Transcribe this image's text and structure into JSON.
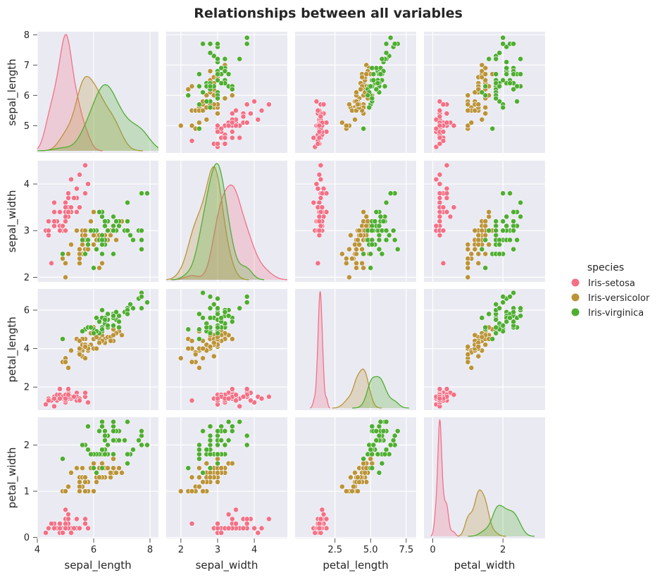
{
  "chart_data": {
    "type": "scatter",
    "title": "Relationships between all variables",
    "variables": [
      "sepal_length",
      "sepal_width",
      "petal_length",
      "petal_width"
    ],
    "axes": {
      "sepal_length": {
        "label": "sepal_length",
        "range": [
          4.0,
          8.3
        ],
        "ticks": [
          4,
          6,
          8
        ],
        "tick_labels": [
          "4",
          "6",
          "8"
        ],
        "y_range": [
          4.1,
          8.1
        ],
        "y_ticks": [
          5,
          6,
          7,
          8
        ],
        "y_tick_labels": [
          "5",
          "6",
          "7",
          "8"
        ]
      },
      "sepal_width": {
        "label": "sepal_width",
        "range": [
          1.6,
          4.9
        ],
        "ticks": [
          2,
          3,
          4
        ],
        "tick_labels": [
          "2",
          "3",
          "4"
        ],
        "y_range": [
          1.9,
          4.5
        ],
        "y_ticks": [
          2,
          3,
          4
        ],
        "y_tick_labels": [
          "2",
          "3",
          "4"
        ]
      },
      "petal_length": {
        "label": "petal_length",
        "range": [
          -0.3,
          8.2
        ],
        "ticks": [
          2.5,
          5.0,
          7.5
        ],
        "tick_labels": [
          "2.5",
          "5.0",
          "7.5"
        ],
        "y_range": [
          0.8,
          7.1
        ],
        "y_ticks": [
          2,
          4,
          6
        ],
        "y_tick_labels": [
          "2",
          "4",
          "6"
        ]
      },
      "petal_width": {
        "label": "petal_width",
        "range": [
          -0.25,
          3.2
        ],
        "ticks": [
          0,
          2
        ],
        "tick_labels": [
          "0",
          "2"
        ],
        "y_range": [
          -0.02,
          2.6
        ],
        "y_ticks": [
          0,
          1,
          2
        ],
        "y_tick_labels": [
          "0",
          "1",
          "2"
        ]
      }
    },
    "diagonal": "kde",
    "off_diagonal": "scatter",
    "grid": true,
    "legend": {
      "title": "species",
      "placement": "right",
      "entries": [
        {
          "name": "Iris-setosa",
          "color": "#f37086"
        },
        {
          "name": "Iris-versicolor",
          "color": "#bb9439"
        },
        {
          "name": "Iris-virginica",
          "color": "#4fae31"
        }
      ]
    },
    "series": [
      {
        "name": "Iris-setosa",
        "color": "#f37086",
        "points": [
          [
            5.1,
            3.5,
            1.4,
            0.2
          ],
          [
            4.9,
            3.0,
            1.4,
            0.2
          ],
          [
            4.7,
            3.2,
            1.3,
            0.2
          ],
          [
            4.6,
            3.1,
            1.5,
            0.2
          ],
          [
            5.0,
            3.6,
            1.4,
            0.2
          ],
          [
            5.4,
            3.9,
            1.7,
            0.4
          ],
          [
            4.6,
            3.4,
            1.4,
            0.3
          ],
          [
            5.0,
            3.4,
            1.5,
            0.2
          ],
          [
            4.4,
            2.9,
            1.4,
            0.2
          ],
          [
            4.9,
            3.1,
            1.5,
            0.1
          ],
          [
            5.4,
            3.7,
            1.5,
            0.2
          ],
          [
            4.8,
            3.4,
            1.6,
            0.2
          ],
          [
            4.8,
            3.0,
            1.4,
            0.1
          ],
          [
            4.3,
            3.0,
            1.1,
            0.1
          ],
          [
            5.8,
            4.0,
            1.2,
            0.2
          ],
          [
            5.7,
            4.4,
            1.5,
            0.4
          ],
          [
            5.4,
            3.9,
            1.3,
            0.4
          ],
          [
            5.1,
            3.5,
            1.4,
            0.3
          ],
          [
            5.7,
            3.8,
            1.7,
            0.3
          ],
          [
            5.1,
            3.8,
            1.5,
            0.3
          ],
          [
            5.4,
            3.4,
            1.7,
            0.2
          ],
          [
            5.1,
            3.7,
            1.5,
            0.4
          ],
          [
            4.6,
            3.6,
            1.0,
            0.2
          ],
          [
            5.1,
            3.3,
            1.7,
            0.5
          ],
          [
            4.8,
            3.4,
            1.9,
            0.2
          ],
          [
            5.0,
            3.0,
            1.6,
            0.2
          ],
          [
            5.0,
            3.4,
            1.6,
            0.4
          ],
          [
            5.2,
            3.5,
            1.5,
            0.2
          ],
          [
            5.2,
            3.4,
            1.4,
            0.2
          ],
          [
            4.7,
            3.2,
            1.6,
            0.2
          ],
          [
            4.8,
            3.1,
            1.6,
            0.2
          ],
          [
            5.4,
            3.4,
            1.5,
            0.4
          ],
          [
            5.2,
            4.1,
            1.5,
            0.1
          ],
          [
            5.5,
            4.2,
            1.4,
            0.2
          ],
          [
            4.9,
            3.1,
            1.5,
            0.1
          ],
          [
            5.0,
            3.2,
            1.2,
            0.2
          ],
          [
            5.5,
            3.5,
            1.3,
            0.2
          ],
          [
            4.9,
            3.1,
            1.5,
            0.1
          ],
          [
            4.4,
            3.0,
            1.3,
            0.2
          ],
          [
            5.1,
            3.4,
            1.5,
            0.2
          ],
          [
            5.0,
            3.5,
            1.3,
            0.3
          ],
          [
            4.5,
            2.3,
            1.3,
            0.3
          ],
          [
            4.4,
            3.2,
            1.3,
            0.2
          ],
          [
            5.0,
            3.5,
            1.6,
            0.6
          ],
          [
            5.1,
            3.8,
            1.9,
            0.4
          ],
          [
            4.8,
            3.0,
            1.4,
            0.3
          ],
          [
            5.1,
            3.8,
            1.6,
            0.2
          ],
          [
            4.6,
            3.2,
            1.4,
            0.2
          ],
          [
            5.3,
            3.7,
            1.5,
            0.2
          ],
          [
            5.0,
            3.3,
            1.4,
            0.2
          ]
        ]
      },
      {
        "name": "Iris-versicolor",
        "color": "#bb9439",
        "points": [
          [
            7.0,
            3.2,
            4.7,
            1.4
          ],
          [
            6.4,
            3.2,
            4.5,
            1.5
          ],
          [
            6.9,
            3.1,
            4.9,
            1.5
          ],
          [
            5.5,
            2.3,
            4.0,
            1.3
          ],
          [
            6.5,
            2.8,
            4.6,
            1.5
          ],
          [
            5.7,
            2.8,
            4.5,
            1.3
          ],
          [
            6.3,
            3.3,
            4.7,
            1.6
          ],
          [
            4.9,
            2.4,
            3.3,
            1.0
          ],
          [
            6.6,
            2.9,
            4.6,
            1.3
          ],
          [
            5.2,
            2.7,
            3.9,
            1.4
          ],
          [
            5.0,
            2.0,
            3.5,
            1.0
          ],
          [
            5.9,
            3.0,
            4.2,
            1.5
          ],
          [
            6.0,
            2.2,
            4.0,
            1.0
          ],
          [
            6.1,
            2.9,
            4.7,
            1.4
          ],
          [
            5.6,
            2.9,
            3.6,
            1.3
          ],
          [
            6.7,
            3.1,
            4.4,
            1.4
          ],
          [
            5.6,
            3.0,
            4.5,
            1.5
          ],
          [
            5.8,
            2.7,
            4.1,
            1.0
          ],
          [
            6.2,
            2.2,
            4.5,
            1.5
          ],
          [
            5.6,
            2.5,
            3.9,
            1.1
          ],
          [
            5.9,
            3.2,
            4.8,
            1.8
          ],
          [
            6.1,
            2.8,
            4.0,
            1.3
          ],
          [
            6.3,
            2.5,
            4.9,
            1.5
          ],
          [
            6.1,
            2.8,
            4.7,
            1.2
          ],
          [
            6.4,
            2.9,
            4.3,
            1.3
          ],
          [
            6.6,
            3.0,
            4.4,
            1.4
          ],
          [
            6.8,
            2.8,
            4.8,
            1.4
          ],
          [
            6.7,
            3.0,
            5.0,
            1.7
          ],
          [
            6.0,
            2.9,
            4.5,
            1.5
          ],
          [
            5.7,
            2.6,
            3.5,
            1.0
          ],
          [
            5.5,
            2.4,
            3.8,
            1.1
          ],
          [
            5.5,
            2.4,
            3.7,
            1.0
          ],
          [
            5.8,
            2.7,
            3.9,
            1.2
          ],
          [
            6.0,
            2.7,
            5.1,
            1.6
          ],
          [
            5.4,
            3.0,
            4.5,
            1.5
          ],
          [
            6.0,
            3.4,
            4.5,
            1.6
          ],
          [
            6.7,
            3.1,
            4.7,
            1.5
          ],
          [
            6.3,
            2.3,
            4.4,
            1.3
          ],
          [
            5.6,
            3.0,
            4.1,
            1.3
          ],
          [
            5.5,
            2.5,
            4.0,
            1.3
          ],
          [
            5.5,
            2.6,
            4.4,
            1.2
          ],
          [
            6.1,
            3.0,
            4.6,
            1.4
          ],
          [
            5.8,
            2.6,
            4.0,
            1.2
          ],
          [
            5.0,
            2.3,
            3.3,
            1.0
          ],
          [
            5.6,
            2.7,
            4.2,
            1.3
          ],
          [
            5.7,
            3.0,
            4.2,
            1.2
          ],
          [
            5.7,
            2.9,
            4.2,
            1.3
          ],
          [
            6.2,
            2.9,
            4.3,
            1.3
          ],
          [
            5.1,
            2.5,
            3.0,
            1.1
          ],
          [
            5.7,
            2.8,
            4.1,
            1.3
          ]
        ]
      },
      {
        "name": "Iris-virginica",
        "color": "#4fae31",
        "points": [
          [
            6.3,
            3.3,
            6.0,
            2.5
          ],
          [
            5.8,
            2.7,
            5.1,
            1.9
          ],
          [
            7.1,
            3.0,
            5.9,
            2.1
          ],
          [
            6.3,
            2.9,
            5.6,
            1.8
          ],
          [
            6.5,
            3.0,
            5.8,
            2.2
          ],
          [
            7.6,
            3.0,
            6.6,
            2.1
          ],
          [
            4.9,
            2.5,
            4.5,
            1.7
          ],
          [
            7.3,
            2.9,
            6.3,
            1.8
          ],
          [
            6.7,
            2.5,
            5.8,
            1.8
          ],
          [
            7.2,
            3.6,
            6.1,
            2.5
          ],
          [
            6.5,
            3.2,
            5.1,
            2.0
          ],
          [
            6.4,
            2.7,
            5.3,
            1.9
          ],
          [
            6.8,
            3.0,
            5.5,
            2.1
          ],
          [
            5.7,
            2.5,
            5.0,
            2.0
          ],
          [
            5.8,
            2.8,
            5.1,
            2.4
          ],
          [
            6.4,
            3.2,
            5.3,
            2.3
          ],
          [
            6.5,
            3.0,
            5.5,
            1.8
          ],
          [
            7.7,
            3.8,
            6.7,
            2.2
          ],
          [
            7.7,
            2.6,
            6.9,
            2.3
          ],
          [
            6.0,
            2.2,
            5.0,
            1.5
          ],
          [
            6.9,
            3.2,
            5.7,
            2.3
          ],
          [
            5.6,
            2.8,
            4.9,
            2.0
          ],
          [
            7.7,
            2.8,
            6.7,
            2.0
          ],
          [
            6.3,
            2.7,
            4.9,
            1.8
          ],
          [
            6.7,
            3.3,
            5.7,
            2.1
          ],
          [
            7.2,
            3.2,
            6.0,
            1.8
          ],
          [
            6.2,
            2.8,
            4.8,
            1.8
          ],
          [
            6.1,
            3.0,
            4.9,
            1.8
          ],
          [
            6.4,
            2.8,
            5.6,
            2.1
          ],
          [
            7.2,
            3.0,
            5.8,
            1.6
          ],
          [
            7.4,
            2.8,
            6.1,
            1.9
          ],
          [
            7.9,
            3.8,
            6.4,
            2.0
          ],
          [
            6.4,
            2.8,
            5.6,
            2.2
          ],
          [
            6.3,
            2.8,
            5.1,
            1.5
          ],
          [
            6.1,
            2.6,
            5.6,
            1.4
          ],
          [
            7.7,
            3.0,
            6.1,
            2.3
          ],
          [
            6.3,
            3.4,
            5.6,
            2.4
          ],
          [
            6.4,
            3.1,
            5.5,
            1.8
          ],
          [
            6.0,
            3.0,
            4.8,
            1.8
          ],
          [
            6.9,
            3.1,
            5.4,
            2.1
          ],
          [
            6.7,
            3.1,
            5.6,
            2.4
          ],
          [
            6.9,
            3.1,
            5.1,
            2.3
          ],
          [
            5.8,
            2.7,
            5.1,
            1.9
          ],
          [
            6.8,
            3.2,
            5.9,
            2.3
          ],
          [
            6.7,
            3.3,
            5.7,
            2.5
          ],
          [
            6.7,
            3.0,
            5.2,
            2.3
          ],
          [
            6.3,
            2.5,
            5.0,
            1.9
          ],
          [
            6.5,
            3.0,
            5.2,
            2.0
          ],
          [
            6.2,
            3.4,
            5.4,
            2.3
          ],
          [
            5.9,
            3.0,
            5.1,
            1.8
          ]
        ]
      }
    ]
  }
}
